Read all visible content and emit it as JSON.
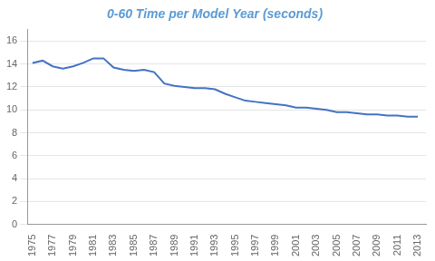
{
  "chart_data": {
    "type": "line",
    "title": "0-60 Time per Model Year (seconds)",
    "x": [
      1975,
      1976,
      1977,
      1978,
      1979,
      1980,
      1981,
      1982,
      1983,
      1984,
      1985,
      1986,
      1987,
      1988,
      1989,
      1990,
      1991,
      1992,
      1993,
      1994,
      1995,
      1996,
      1997,
      1998,
      1999,
      2000,
      2001,
      2002,
      2003,
      2004,
      2005,
      2006,
      2007,
      2008,
      2009,
      2010,
      2011,
      2012,
      2013
    ],
    "values": [
      14.1,
      14.3,
      13.8,
      13.6,
      13.8,
      14.1,
      14.5,
      14.5,
      13.7,
      13.5,
      13.4,
      13.5,
      13.3,
      12.3,
      12.1,
      12.0,
      11.9,
      11.9,
      11.8,
      11.4,
      11.1,
      10.8,
      10.7,
      10.6,
      10.5,
      10.4,
      10.2,
      10.2,
      10.1,
      10.0,
      9.8,
      9.8,
      9.7,
      9.6,
      9.6,
      9.5,
      9.5,
      9.4,
      9.4
    ],
    "color": "#4472C4",
    "xlim": [
      1974.5,
      2013.8
    ],
    "xticks": [
      1975,
      1977,
      1979,
      1981,
      1983,
      1985,
      1987,
      1989,
      1991,
      1993,
      1995,
      1997,
      1999,
      2001,
      2003,
      2005,
      2007,
      2009,
      2011,
      2013
    ],
    "ylim": [
      0,
      17
    ],
    "yticks": [
      0,
      2,
      4,
      6,
      8,
      10,
      12,
      14,
      16
    ],
    "grid": "y"
  }
}
